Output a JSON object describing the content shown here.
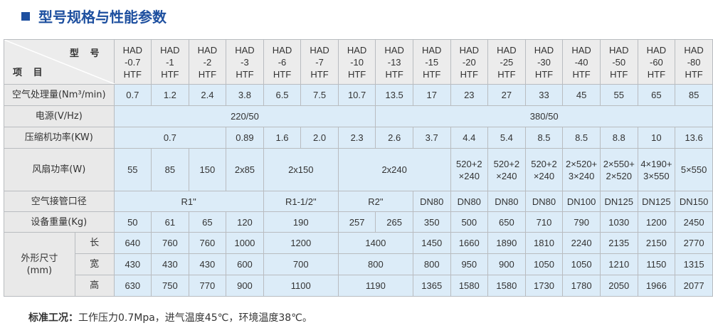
{
  "title": "型号规格与性能参数",
  "header": {
    "model_label": "型 号",
    "item_label": "项 目",
    "models": [
      "HAD\n-0.7\nHTF",
      "HAD\n-1\nHTF",
      "HAD\n-2\nHTF",
      "HAD\n-3\nHTF",
      "HAD\n-6\nHTF",
      "HAD\n-7\nHTF",
      "HAD\n-10\nHTF",
      "HAD\n-13\nHTF",
      "HAD\n-15\nHTF",
      "HAD\n-20\nHTF",
      "HAD\n-25\nHTF",
      "HAD\n-30\nHTF",
      "HAD\n-40\nHTF",
      "HAD\n-50\nHTF",
      "HAD\n-60\nHTF",
      "HAD\n-80\nHTF"
    ]
  },
  "rows": [
    {
      "label": "空气处理量(Nm³/min)",
      "cells": [
        "0.7",
        "1.2",
        "2.4",
        "3.8",
        "6.5",
        "7.5",
        "10.7",
        "13.5",
        "17",
        "23",
        "27",
        "33",
        "45",
        "55",
        "65",
        "85"
      ]
    },
    {
      "label": "电源(V/Hz)",
      "cells": [
        "220/50",
        "380/50"
      ]
    },
    {
      "label": "压缩机功率(KW)",
      "cells": [
        "0.7",
        "0.89",
        "1.6",
        "2.0",
        "2.3",
        "2.6",
        "3.7",
        "4.4",
        "5.4",
        "8.5",
        "8.5",
        "8.8",
        "10",
        "13.6"
      ]
    },
    {
      "label": "风扇功率(W)",
      "cells": [
        "55",
        "85",
        "150",
        "2x85",
        "2x150",
        "2x240",
        "520+2\n×240",
        "520+2\n×240",
        "520+2\n×240",
        "2×520+\n3×240",
        "2×550+\n2×520",
        "4×190+\n3×550",
        "5×550"
      ]
    },
    {
      "label": "空气接管口径",
      "cells": [
        "R1\"",
        "R1-1/2\"",
        "R2\"",
        "DN80",
        "DN80",
        "DN80",
        "DN80",
        "DN100",
        "DN125",
        "DN125",
        "DN150"
      ]
    },
    {
      "label": "设备重量(Kg)",
      "cells": [
        "50",
        "61",
        "65",
        "120",
        "190",
        "257",
        "265",
        "350",
        "500",
        "650",
        "710",
        "790",
        "1030",
        "1200",
        "2450"
      ]
    }
  ],
  "dimensions": {
    "label": "外形尺寸\n(mm)",
    "rows": [
      {
        "label": "长",
        "cells": [
          "640",
          "760",
          "760",
          "1000",
          "1200",
          "1400",
          "1450",
          "1660",
          "1890",
          "1810",
          "2240",
          "2135",
          "2150",
          "2770"
        ]
      },
      {
        "label": "宽",
        "cells": [
          "430",
          "430",
          "430",
          "600",
          "700",
          "800",
          "800",
          "950",
          "900",
          "1050",
          "1050",
          "1210",
          "1150",
          "1315"
        ]
      },
      {
        "label": "高",
        "cells": [
          "630",
          "750",
          "770",
          "900",
          "1100",
          "1190",
          "1365",
          "1580",
          "1580",
          "1730",
          "1780",
          "2050",
          "1966",
          "2077"
        ]
      }
    ]
  },
  "footer": {
    "label": "标准工况：",
    "text": "工作压力0.7Mpa，进气温度45℃，环境温度38℃。"
  }
}
